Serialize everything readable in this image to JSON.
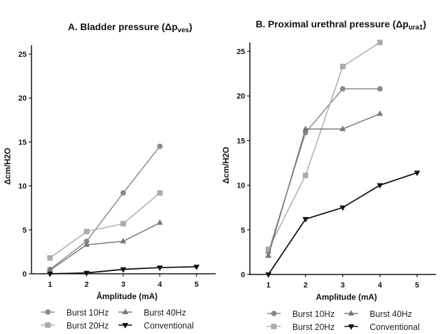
{
  "chart_data": [
    {
      "type": "line",
      "title": "A. Bladder pressure (Δp",
      "title_sub": "ves",
      "title_end": ")",
      "xlabel": "Âmplitude (mA)",
      "ylabel": "Δcm/H2O",
      "xlim": [
        0.5,
        5.7
      ],
      "ylim": [
        0,
        26
      ],
      "xticks": [
        1,
        2,
        3,
        4,
        5
      ],
      "yticks": [
        0,
        5,
        10,
        15,
        20,
        25
      ],
      "grid": false,
      "legend_position": "bottom",
      "series": [
        {
          "name": "Burst 10Hz",
          "marker": "circle",
          "color": "#8a8a8a",
          "x": [
            1,
            2,
            3,
            4
          ],
          "y": [
            0.5,
            3.7,
            9.2,
            14.5
          ]
        },
        {
          "name": "Burst 20Hz",
          "marker": "square",
          "color": "#ababab",
          "x": [
            1,
            2,
            3,
            4
          ],
          "y": [
            1.8,
            4.8,
            5.7,
            9.2
          ]
        },
        {
          "name": "Burst 40Hz",
          "marker": "triangle-up",
          "color": "#777777",
          "x": [
            1,
            2,
            3,
            4
          ],
          "y": [
            0.4,
            3.3,
            3.7,
            5.8
          ]
        },
        {
          "name": "Conventional",
          "marker": "triangle-down",
          "color": "#111111",
          "x": [
            1,
            2,
            3,
            4,
            5
          ],
          "y": [
            0,
            0.1,
            0.5,
            0.7,
            0.8
          ]
        }
      ]
    },
    {
      "type": "line",
      "title": "B. Proximal urethral pressure (Δp",
      "title_sub": "ura1",
      "title_end": ")",
      "xlabel": "Amplitude (mA)",
      "ylabel": "Δcm/H2O",
      "xlim": [
        0.5,
        5.5
      ],
      "ylim": [
        0,
        26
      ],
      "xticks": [
        1,
        2,
        3,
        4,
        5
      ],
      "yticks": [
        0,
        5,
        10,
        15,
        20,
        25
      ],
      "grid": false,
      "legend_position": "bottom",
      "series": [
        {
          "name": "Burst 10Hz",
          "marker": "circle",
          "color": "#8a8a8a",
          "x": [
            1,
            2,
            3,
            4
          ],
          "y": [
            2.5,
            15.9,
            20.8,
            20.8
          ]
        },
        {
          "name": "Burst 20Hz",
          "marker": "square",
          "color": "#ababab",
          "x": [
            1,
            2,
            3,
            4
          ],
          "y": [
            2.8,
            11.1,
            23.3,
            26
          ]
        },
        {
          "name": "Burst 40Hz",
          "marker": "triangle-up",
          "color": "#777777",
          "x": [
            1,
            2,
            3,
            4
          ],
          "y": [
            2.1,
            16.3,
            16.3,
            18
          ]
        },
        {
          "name": "Conventional",
          "marker": "triangle-down",
          "color": "#111111",
          "x": [
            1,
            2,
            3,
            4,
            5
          ],
          "y": [
            0,
            6.2,
            7.5,
            10,
            11.4
          ]
        }
      ]
    }
  ]
}
